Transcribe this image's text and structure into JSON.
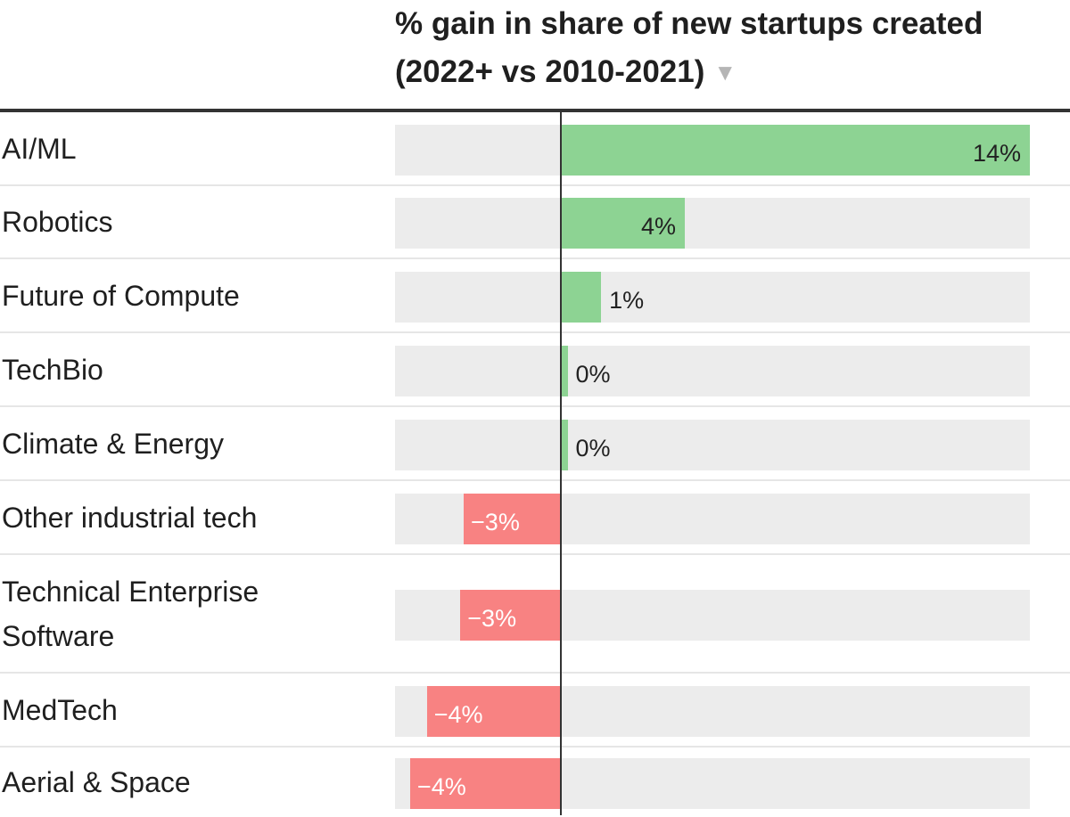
{
  "header": {
    "title": "% gain in share of new startups created (2022+ vs 2010-2021)",
    "sort_icon": "▼"
  },
  "colors": {
    "positive": "#8dd393",
    "negative": "#f88282",
    "track": "#ececec",
    "axis": "#333333"
  },
  "chart_data": {
    "type": "bar",
    "orientation": "horizontal",
    "title": "% gain in share of new startups created (2022+ vs 2010-2021)",
    "categories": [
      "AI/ML",
      "Robotics",
      "Future of Compute",
      "TechBio",
      "Climate & Energy",
      "Other industrial tech",
      "Technical Enterprise Software",
      "MedTech",
      "Aerial & Space"
    ],
    "values": [
      14,
      3.7,
      1.2,
      0.2,
      0.2,
      -2.9,
      -3.0,
      -4.0,
      -4.5
    ],
    "value_labels": [
      "14%",
      "4%",
      "1%",
      "0%",
      "0%",
      "−3%",
      "−3%",
      "−4%",
      "−4%"
    ],
    "xlim": [
      -5,
      14
    ],
    "grid": false
  }
}
